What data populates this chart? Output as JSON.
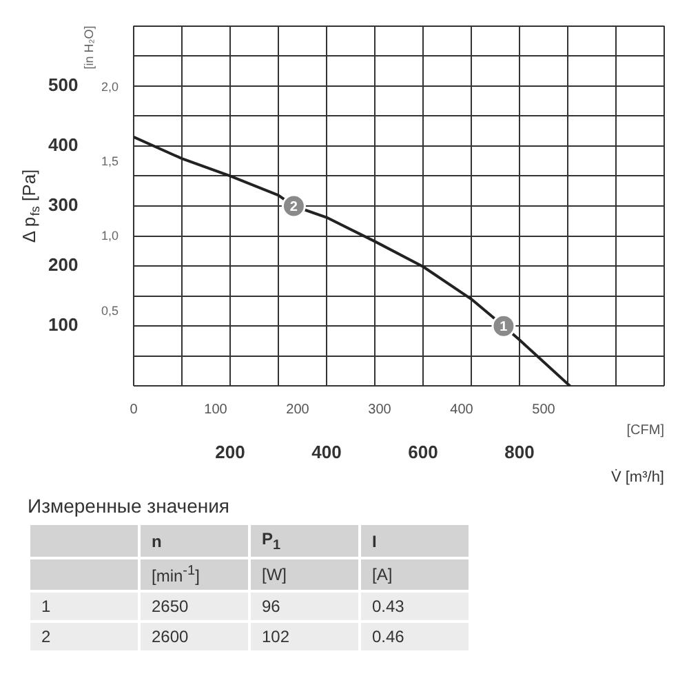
{
  "chart_data": [
    {
      "type": "line",
      "xlabel": "V̇ [m³/h]",
      "ylabel": "Δ p$_{fs}$ [Pa]",
      "x2label": "[CFM]",
      "y2label": "[in H₂O]",
      "x": [
        0,
        100,
        200,
        300,
        332,
        400,
        500,
        600,
        700,
        767,
        800,
        905
      ],
      "series": [
        {
          "color": "#222222",
          "values": [
            415,
            379,
            350,
            318,
            300,
            281,
            241,
            199,
            145,
            100,
            77,
            0
          ]
        }
      ],
      "xlim": [
        0,
        1100
      ],
      "xticks": [
        {
          "value": 0,
          "label": null
        },
        {
          "value": 100,
          "label": null
        },
        200,
        {
          "value": 300,
          "label": null
        },
        400,
        {
          "value": 500,
          "label": null
        },
        600,
        {
          "value": 700,
          "label": null
        },
        800,
        {
          "value": 900,
          "label": null
        },
        {
          "value": 1000,
          "label": null
        },
        {
          "value": 1100,
          "label": null
        }
      ],
      "x2lim": [
        0,
        647
      ],
      "x2ticks": [
        0,
        100,
        200,
        300,
        400,
        500
      ],
      "ylim": [
        0,
        600
      ],
      "yticks": [
        {
          "value": 0,
          "label": null
        },
        {
          "value": 50,
          "label": null
        },
        100,
        {
          "value": 150,
          "label": null
        },
        200,
        {
          "value": 250,
          "label": null
        },
        300,
        {
          "value": 350,
          "label": null
        },
        400,
        {
          "value": 450,
          "label": null
        },
        500,
        {
          "value": 550,
          "label": null
        },
        {
          "value": 600,
          "label": null
        }
      ],
      "y2lim": [
        0,
        2.41
      ],
      "y2ticks": [
        {
          "value": 0.5,
          "label": "0,5"
        },
        {
          "value": 1,
          "label": "1,0"
        },
        {
          "value": 1.5,
          "label": "1,5"
        },
        {
          "value": 2,
          "label": "2,0"
        }
      ],
      "annotations": [
        {
          "text": "1",
          "x": 767,
          "y": 100
        },
        {
          "text": "2",
          "x": 332,
          "y": 300
        }
      ],
      "grid": true,
      "marker": "none",
      "line_style": "solid"
    },
    {
      "type": "other",
      "title": "Измеренные значения",
      "categories": [
        null,
        "n",
        "P$_{1}$",
        "I"
      ],
      "y_categories": [
        null,
        "1",
        "2"
      ],
      "cell_labels": [
        [
          "[min$^{-1}$]",
          "[W]",
          "[A]"
        ],
        [
          "2650",
          "96",
          "0.43"
        ],
        [
          "2600",
          "102",
          "0.46"
        ]
      ]
    }
  ]
}
